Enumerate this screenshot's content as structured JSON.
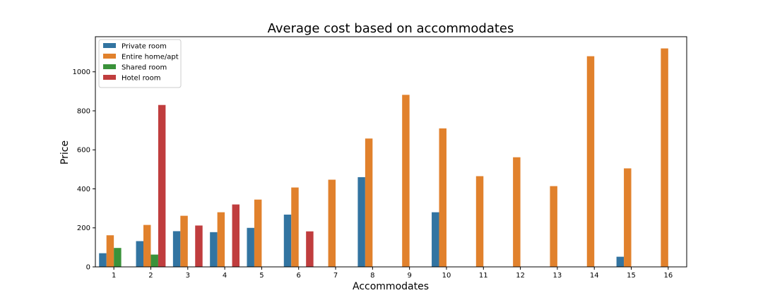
{
  "chart_data": {
    "type": "bar",
    "title": "Average cost based on accommodates",
    "xlabel": "Accommodates",
    "ylabel": "Price",
    "categories": [
      "1",
      "2",
      "3",
      "4",
      "5",
      "6",
      "7",
      "8",
      "9",
      "10",
      "11",
      "12",
      "13",
      "14",
      "15",
      "16"
    ],
    "ylim": [
      0,
      1180
    ],
    "yticks": [
      0,
      200,
      400,
      600,
      800,
      1000
    ],
    "grid": false,
    "legend_position": "top-left",
    "series": [
      {
        "name": "Private room",
        "color": "#3274a1",
        "values": [
          70,
          132,
          183,
          178,
          200,
          268,
          null,
          460,
          null,
          280,
          null,
          null,
          null,
          null,
          52,
          null
        ]
      },
      {
        "name": "Entire home/apt",
        "color": "#e1812c",
        "values": [
          162,
          215,
          262,
          280,
          345,
          407,
          447,
          658,
          882,
          710,
          465,
          562,
          414,
          1080,
          505,
          1120
        ]
      },
      {
        "name": "Shared room",
        "color": "#3a923a",
        "values": [
          97,
          63,
          null,
          null,
          null,
          null,
          null,
          null,
          null,
          null,
          null,
          null,
          null,
          null,
          null,
          null
        ]
      },
      {
        "name": "Hotel room",
        "color": "#c03d3e",
        "values": [
          null,
          830,
          212,
          320,
          null,
          182,
          null,
          null,
          null,
          null,
          null,
          null,
          null,
          null,
          null,
          null
        ]
      }
    ]
  }
}
